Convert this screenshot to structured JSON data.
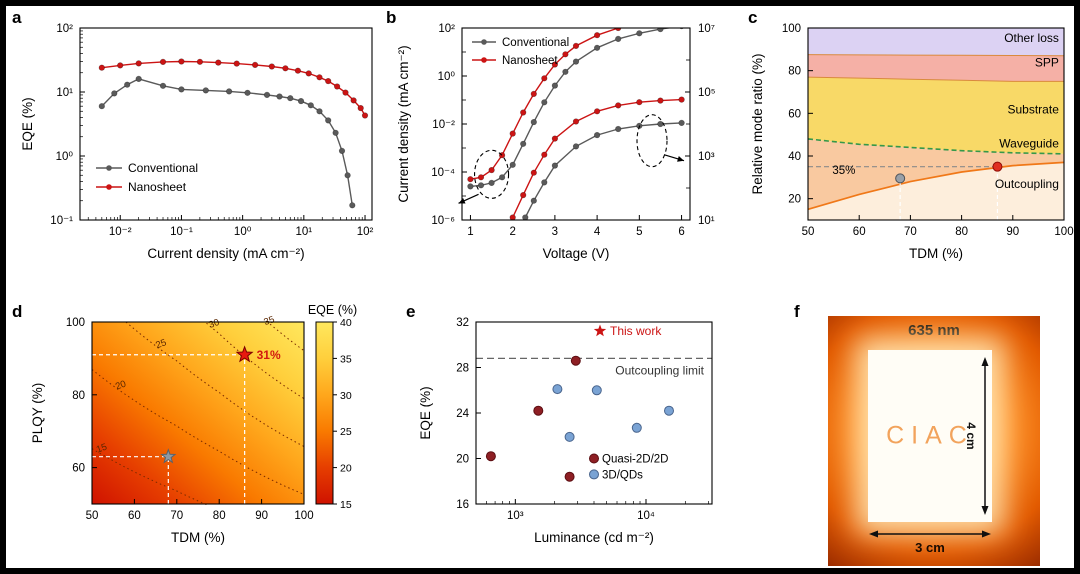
{
  "figure": {
    "panel_labels": {
      "a": "a",
      "b": "b",
      "c": "c",
      "d": "d",
      "e": "e",
      "f": "f"
    }
  },
  "chart_data": [
    {
      "id": "a",
      "type": "line",
      "xlabel": "Current density (mA cm⁻²)",
      "ylabel": "EQE (%)",
      "xscale": "log",
      "yscale": "log",
      "xlim": [
        0.0022,
        130
      ],
      "ylim": [
        0.1,
        100
      ],
      "xticks": [
        {
          "v": 0.01,
          "t": "10⁻²"
        },
        {
          "v": 0.1,
          "t": "10⁻¹"
        },
        {
          "v": 1,
          "t": "10⁰"
        },
        {
          "v": 10,
          "t": "10¹"
        },
        {
          "v": 100,
          "t": "10²"
        }
      ],
      "yticks": [
        {
          "v": 0.1,
          "t": "10⁻¹"
        },
        {
          "v": 1,
          "t": "10⁰"
        },
        {
          "v": 10,
          "t": "10¹"
        },
        {
          "v": 100,
          "t": "10²"
        }
      ],
      "series": [
        {
          "name": "Conventional",
          "color": "#5a5a5a",
          "x": [
            0.005,
            0.008,
            0.013,
            0.02,
            0.05,
            0.1,
            0.25,
            0.6,
            1.2,
            2.5,
            4,
            6,
            9,
            13,
            18,
            25,
            33,
            42,
            52,
            62
          ],
          "y": [
            6,
            9.5,
            13,
            16,
            12.5,
            11,
            10.6,
            10.2,
            9.7,
            9,
            8.5,
            8,
            7.2,
            6.2,
            5,
            3.6,
            2.3,
            1.2,
            0.5,
            0.17
          ]
        },
        {
          "name": "Nanosheet",
          "color": "#cc1414",
          "x": [
            0.005,
            0.01,
            0.02,
            0.05,
            0.1,
            0.2,
            0.4,
            0.8,
            1.6,
            3,
            5,
            8,
            12,
            18,
            25,
            35,
            48,
            65,
            85,
            100
          ],
          "y": [
            24,
            26,
            28,
            29.5,
            30,
            29.6,
            28.8,
            27.8,
            26.5,
            25,
            23.5,
            21.5,
            19.5,
            17,
            14.8,
            12.2,
            9.8,
            7.4,
            5.6,
            4.3
          ]
        }
      ],
      "legend": [
        "Conventional",
        "Nanosheet"
      ]
    },
    {
      "id": "b",
      "type": "line-dual",
      "xlabel": "Voltage (V)",
      "ylabel_left": "Current density (mA cm⁻²)",
      "xlim": [
        0.8,
        6.2
      ],
      "ylim_left": [
        1e-06,
        100
      ],
      "ylim_right": [
        10,
        10000000
      ],
      "xticks": [
        1,
        2,
        3,
        4,
        5,
        6
      ],
      "yticks_left": [
        {
          "v": 100,
          "t": "10²"
        },
        {
          "v": 1,
          "t": "10⁰"
        },
        {
          "v": 0.01,
          "t": "10⁻²"
        },
        {
          "v": 0.0001,
          "t": "10⁻⁴"
        },
        {
          "v": 1e-06,
          "t": "10⁻⁶"
        }
      ],
      "yticks_right": [
        {
          "v": 10000000,
          "t": "10⁷"
        },
        {
          "v": 100000,
          "t": "10⁵"
        },
        {
          "v": 1000,
          "t": "10³"
        },
        {
          "v": 10,
          "t": "10¹"
        }
      ],
      "series": [
        {
          "name": "Conventional",
          "axis": "left",
          "color": "#5a5a5a",
          "x": [
            1,
            1.25,
            1.5,
            1.75,
            2,
            2.25,
            2.5,
            2.75,
            3,
            3.25,
            3.5,
            4,
            4.5,
            5,
            5.5,
            6
          ],
          "y": [
            2.5e-05,
            2.8e-05,
            3.5e-05,
            6e-05,
            0.0002,
            0.0015,
            0.012,
            0.08,
            0.4,
            1.5,
            4,
            15,
            35,
            60,
            90,
            120
          ]
        },
        {
          "name": "Nanosheet",
          "axis": "left",
          "color": "#cc1414",
          "x": [
            1,
            1.25,
            1.5,
            1.75,
            2,
            2.25,
            2.5,
            2.75,
            3,
            3.25,
            3.5,
            4,
            4.5,
            5,
            5.5,
            6
          ],
          "y": [
            5e-05,
            6e-05,
            0.00012,
            0.0005,
            0.004,
            0.03,
            0.18,
            0.8,
            3,
            8,
            18,
            50,
            100,
            160,
            230,
            300
          ]
        },
        {
          "name": "Nanosheet luminance",
          "axis": "right",
          "color": "#cc1414",
          "x": [
            2,
            2.25,
            2.5,
            2.75,
            3,
            3.5,
            4,
            4.5,
            5,
            5.5,
            6
          ],
          "y": [
            12,
            60,
            300,
            1100,
            3500,
            12000,
            25000,
            38000,
            48000,
            54000,
            58000
          ]
        },
        {
          "name": "Conventional luminance",
          "axis": "right",
          "color": "#5a5a5a",
          "x": [
            2.3,
            2.5,
            2.75,
            3,
            3.5,
            4,
            4.5,
            5,
            5.5,
            6
          ],
          "y": [
            12,
            40,
            150,
            500,
            2000,
            4500,
            7000,
            8800,
            10000,
            10800
          ]
        }
      ],
      "legend": [
        "Conventional",
        "Nanosheet"
      ]
    },
    {
      "id": "c",
      "type": "area",
      "xlabel": "TDM (%)",
      "ylabel": "Relative mode ratio (%)",
      "xlim": [
        50,
        100
      ],
      "ylim": [
        10,
        100
      ],
      "xticks": [
        50,
        60,
        70,
        80,
        90,
        100
      ],
      "yticks": [
        20,
        40,
        60,
        80,
        100
      ],
      "x": [
        50,
        60,
        70,
        80,
        90,
        100
      ],
      "boundaries": {
        "outcoupling": [
          15,
          22,
          28,
          32.5,
          35.5,
          37
        ],
        "waveguide": [
          48,
          45.5,
          44,
          42.5,
          41.5,
          41
        ],
        "substrate": [
          77,
          76.5,
          76,
          75.5,
          75,
          75
        ],
        "spp": [
          87.5,
          87.4,
          87.3,
          87.2,
          87.1,
          87
        ]
      },
      "regions": [
        {
          "name": "Outcoupling",
          "fill": "#fdeedc",
          "label_y": 25
        },
        {
          "name": "Waveguide",
          "fill": "#f9c9a0",
          "label_y": 44
        },
        {
          "name": "Substrate",
          "fill": "#f8d967",
          "label_y": 60
        },
        {
          "name": "SPP",
          "fill": "#f5b0a6",
          "label_y": 82
        },
        {
          "name": "Other loss",
          "fill": "#dcd2f3",
          "label_y": 93.5
        }
      ],
      "lines": {
        "outcoupling": "#f07818",
        "waveguide": "#35984a",
        "other": "#d98a3d"
      },
      "annotations": {
        "threshold_label": "35%",
        "threshold_y": 35,
        "gray_point": [
          68,
          29.5
        ],
        "red_point": [
          87,
          35
        ]
      }
    },
    {
      "id": "d",
      "type": "heatmap",
      "xlabel": "TDM (%)",
      "ylabel": "PLQY (%)",
      "xlim": [
        50,
        100
      ],
      "ylim": [
        50,
        100
      ],
      "xticks": [
        50,
        60,
        70,
        80,
        90,
        100
      ],
      "yticks": [
        60,
        80,
        100
      ],
      "colorbar": {
        "title": "EQE (%)",
        "min": 15,
        "max": 40,
        "ticks": [
          15,
          20,
          25,
          30,
          35,
          40
        ],
        "colors": [
          "#cf1200",
          "#e63e00",
          "#f97a00",
          "#ffa71c",
          "#ffcf3c",
          "#ffe85e"
        ]
      },
      "contours": {
        "levels": [
          15,
          20,
          25,
          30,
          35
        ],
        "label_x": {
          "15": 52.5,
          "20": 57,
          "25": 66.5,
          "30": 79,
          "35": 92
        },
        "outcoupling_x": [
          50,
          60,
          70,
          80,
          90,
          100
        ],
        "outcoupling_frac": [
          0.23,
          0.255,
          0.28,
          0.31,
          0.345,
          0.38
        ]
      },
      "markers": [
        {
          "name": "this-work",
          "xy": [
            86,
            91
          ],
          "label": "31%",
          "color": "#e8190f",
          "edge": "#7a0000"
        },
        {
          "name": "conventional",
          "xy": [
            68,
            63
          ],
          "label": "",
          "color": "#8f98a3",
          "edge": "#5a626b"
        }
      ]
    },
    {
      "id": "e",
      "type": "scatter",
      "xlabel": "Luminance (cd m⁻²)",
      "ylabel": "EQE (%)",
      "xscale": "log",
      "xlim": [
        500,
        32000
      ],
      "ylim": [
        16,
        32
      ],
      "xticks": [
        {
          "v": 1000,
          "t": "10³"
        },
        {
          "v": 10000,
          "t": "10⁴"
        }
      ],
      "yticks": [
        16,
        20,
        24,
        28,
        32
      ],
      "limit": {
        "label": "Outcoupling limit",
        "y": 28.8
      },
      "legend": [
        {
          "name": "This work",
          "marker": "star",
          "color": "#cc1414"
        },
        {
          "name": "Quasi-2D/2D",
          "marker": "dot",
          "color": "#8e1f24"
        },
        {
          "name": "3D/QDs",
          "marker": "dot",
          "color": "#7aa3d4"
        }
      ],
      "series": [
        {
          "name": "Quasi-2D/2D",
          "color": "#8e1f24",
          "edge": "#5c0e12",
          "points": [
            [
              650,
              20.2
            ],
            [
              1500,
              24.2
            ],
            [
              2600,
              18.4
            ],
            [
              2900,
              28.6
            ]
          ]
        },
        {
          "name": "3D/QDs",
          "color": "#7aa3d4",
          "edge": "#49648c",
          "points": [
            [
              2100,
              26.1
            ],
            [
              2600,
              21.9
            ],
            [
              4200,
              26.0
            ],
            [
              8500,
              22.7
            ],
            [
              15000,
              24.2
            ]
          ]
        }
      ]
    }
  ],
  "photo": {
    "wavelength": "635 nm",
    "device_text": "CIAC",
    "height_label": "4 cm",
    "width_label": "3 cm"
  }
}
